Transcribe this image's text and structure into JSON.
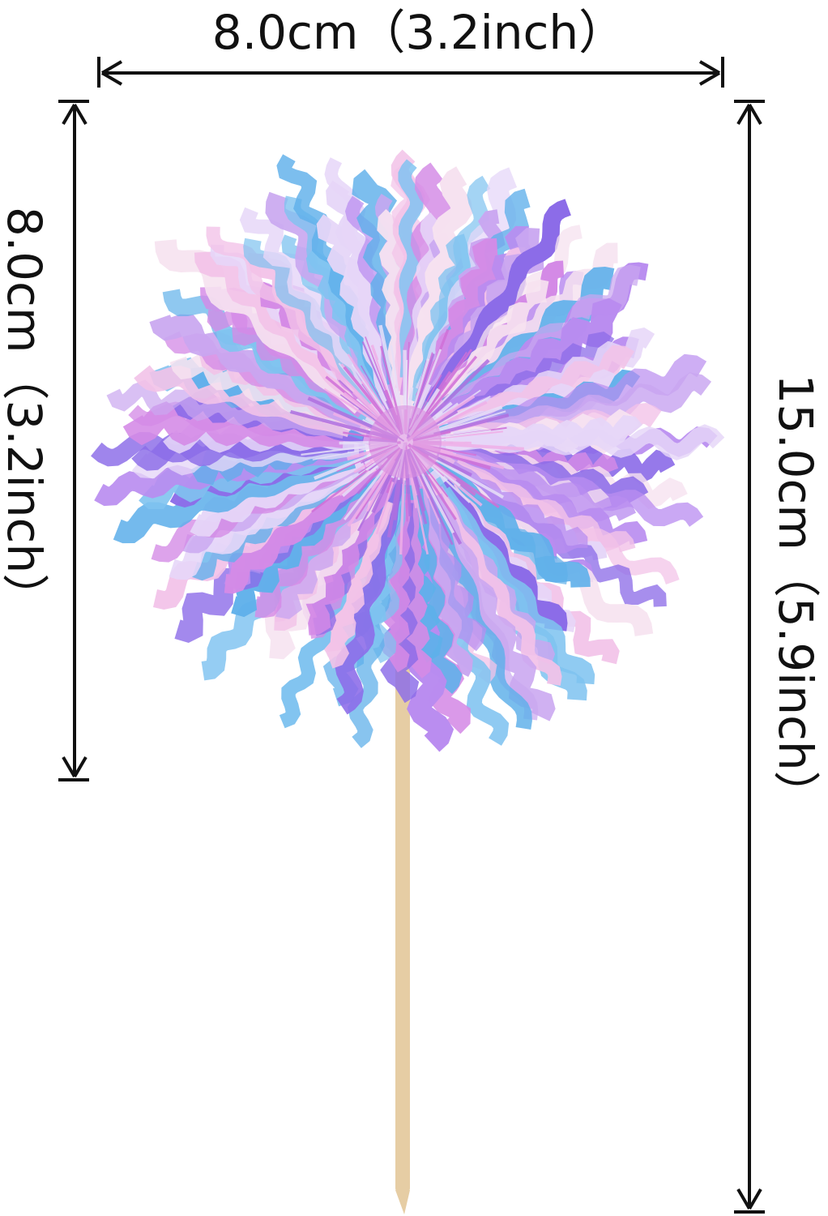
{
  "dimensions": {
    "width_label": "8.0cm（3.2inch）",
    "head_height_label": "8.0cm（3.2inch）",
    "total_height_label": "15.0cm（5.9inch）"
  },
  "colors": {
    "arrow": "#111111",
    "stick": "#e6cda4",
    "tinsel_palette": [
      "#c9a6f0",
      "#7fc3f0",
      "#8c6ce8",
      "#f2c2e8",
      "#b98cf0",
      "#e6d6f8",
      "#5fb0ea",
      "#d48ae6",
      "#f6e2f0"
    ]
  },
  "product": {
    "type": "iridescent tinsel cupcake topper on a wooden stick"
  }
}
